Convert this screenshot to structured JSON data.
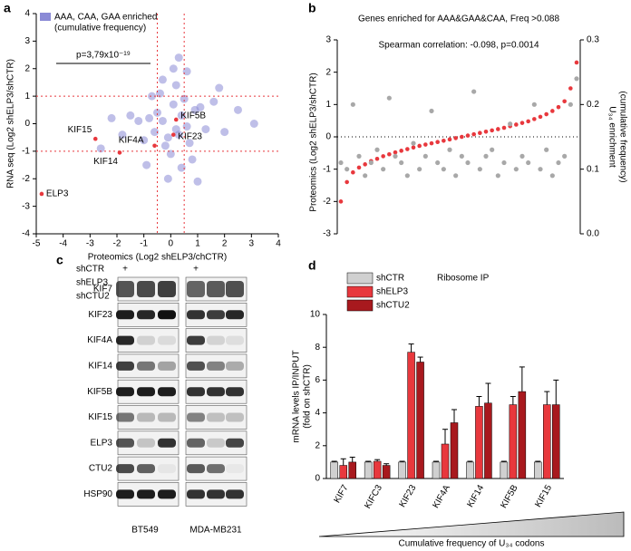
{
  "panel_labels": [
    "a",
    "b",
    "c",
    "d"
  ],
  "chart_data": [
    {
      "type": "scatter",
      "xlabel": "Proteomics (Log2 shELP3/chCTR)",
      "ylabel": "RNA seq (Log2 shELP3/shCTR)",
      "xlim": [
        -5,
        4
      ],
      "xticks": [
        -5,
        -4,
        -3,
        -2,
        -1,
        0,
        1,
        2,
        3,
        4
      ],
      "ylim": [
        -4,
        4
      ],
      "yticks": [
        -4,
        -3,
        -2,
        -1,
        0,
        1,
        2,
        3,
        4
      ],
      "hlines": [
        -1,
        1
      ],
      "vlines": [
        -0.5,
        0.5
      ],
      "annotation": "p=3,79x10⁻¹⁹",
      "legend_note": "(cumulative frequency)",
      "series": [
        {
          "name": "AAA, CAA, GAA  enriched",
          "color": "#8a8ad6",
          "x": [
            -0.3,
            0.2,
            -0.5,
            0.4,
            -0.1,
            0.6,
            -0.8,
            0.9,
            0.1,
            -0.2,
            0.3,
            -0.6,
            0.5,
            -1.2,
            1.3,
            -0.4,
            0.7,
            0.0,
            -1.0,
            1.1,
            0.2,
            -0.3,
            0.8,
            -1.5,
            1.6,
            -0.7,
            0.4,
            2.0,
            -1.8,
            0.1,
            1.8,
            -2.2,
            2.5,
            -0.9,
            0.6,
            3.1,
            -2.6,
            1.0,
            -0.1,
            0.3
          ],
          "values": [
            0.1,
            -0.2,
            0.4,
            0.3,
            -0.5,
            -0.1,
            0.2,
            0.5,
            0.7,
            -0.8,
            -0.4,
            -0.3,
            0.9,
            0.1,
            -0.2,
            1.1,
            -0.7,
            -1.1,
            -0.6,
            0.6,
            1.4,
            1.6,
            -1.3,
            0.3,
            0.8,
            1.0,
            -1.6,
            -0.3,
            -0.4,
            2.0,
            1.3,
            0.2,
            0.5,
            -1.5,
            1.9,
            0.0,
            -0.9,
            -2.1,
            -2.0,
            2.4
          ]
        },
        {
          "color": "#e8383d",
          "x": [
            0.2,
            0.1,
            -0.6,
            -2.8,
            -1.9,
            -4.8
          ],
          "values": [
            0.15,
            -0.4,
            -0.8,
            -0.55,
            -1.05,
            -2.55
          ],
          "point_labels": [
            "KIF5B",
            "KIF23",
            "KIF4A",
            "KIF15",
            "KIF14",
            "ELP3"
          ]
        }
      ]
    },
    {
      "type": "scatter",
      "title": "Genes enriched for AAA&GAA&CAA, Freq >0.088",
      "subtitle": "Spearman correlation: -0.098, p=0.0014",
      "ylabel": "Proteomics (Log2 shELP3/shCTR)",
      "y2label": [
        "U₃₄ enrichment",
        "(cumulative frequency)"
      ],
      "ylim": [
        -3,
        3
      ],
      "yticks": [
        -3,
        -2,
        -1,
        0,
        1,
        2,
        3
      ],
      "y2lim": [
        0,
        0.3
      ],
      "y2ticks": [
        {
          "value": 0,
          "label": "0.0"
        },
        0.1,
        0.2,
        0.3
      ],
      "hlines": [
        0
      ],
      "series": [
        {
          "color": "#e8383d",
          "values": [
            -2.0,
            -1.4,
            -1.1,
            -0.95,
            -0.85,
            -0.75,
            -0.68,
            -0.6,
            -0.54,
            -0.48,
            -0.43,
            -0.38,
            -0.33,
            -0.28,
            -0.24,
            -0.2,
            -0.16,
            -0.12,
            -0.08,
            -0.04,
            0,
            0.04,
            0.08,
            0.12,
            0.16,
            0.2,
            0.24,
            0.28,
            0.33,
            0.38,
            0.43,
            0.48,
            0.55,
            0.62,
            0.7,
            0.8,
            0.92,
            1.1,
            1.5,
            2.3
          ]
        },
        {
          "color": "#a8a8a8",
          "axis": "y2",
          "values": [
            0.11,
            0.1,
            0.2,
            0.12,
            0.09,
            0.11,
            0.13,
            0.1,
            0.21,
            0.12,
            0.11,
            0.09,
            0.14,
            0.1,
            0.12,
            0.19,
            0.11,
            0.1,
            0.13,
            0.09,
            0.12,
            0.11,
            0.22,
            0.1,
            0.12,
            0.13,
            0.09,
            0.11,
            0.17,
            0.1,
            0.12,
            0.11,
            0.2,
            0.1,
            0.13,
            0.09,
            0.11,
            0.12,
            0.2,
            0.24
          ]
        }
      ]
    },
    {
      "type": "bar",
      "annotation": "Ribosome IP",
      "ylabel": [
        "mRNA levels IP/INPUT",
        "(fold on shCTR)"
      ],
      "footer": "Cumulative frequency of U₃₄ codons",
      "categories": [
        "KIF7",
        "KIFC3",
        "KIF23",
        "KIF4A",
        "KIF14",
        "KIF5B",
        "KIF15"
      ],
      "ylim": [
        0,
        10
      ],
      "yticks": [
        0,
        2,
        4,
        6,
        8,
        10
      ],
      "series": [
        {
          "name": "shCTR",
          "color": "#d0d0d0",
          "values": [
            1,
            1,
            1,
            1,
            1,
            1,
            1
          ],
          "errors": [
            0.05,
            0.05,
            0.05,
            0.05,
            0.05,
            0.05,
            0.05
          ]
        },
        {
          "name": "shELP3",
          "color": "#e8383d",
          "values": [
            0.8,
            1.05,
            7.7,
            2.1,
            4.4,
            4.5,
            4.5
          ],
          "errors": [
            0.4,
            0.1,
            0.5,
            0.9,
            0.6,
            0.5,
            0.8
          ]
        },
        {
          "name": "shCTU2",
          "color": "#a8191e",
          "values": [
            1.0,
            0.8,
            7.1,
            3.4,
            4.6,
            5.3,
            4.5
          ],
          "errors": [
            0.3,
            0.1,
            0.3,
            0.8,
            1.2,
            1.5,
            1.5
          ]
        }
      ]
    }
  ],
  "blot": {
    "conditions": [
      "shCTR",
      "shELP3",
      "shCTU2"
    ],
    "plus": "+",
    "bands": [
      "KIF7",
      "KIF23",
      "KIF4A",
      "KIF14",
      "KIF5B",
      "KIF15",
      "ELP3",
      "CTU2",
      "HSP90"
    ],
    "cell_lines": [
      "BT549",
      "MDA-MB231"
    ]
  }
}
